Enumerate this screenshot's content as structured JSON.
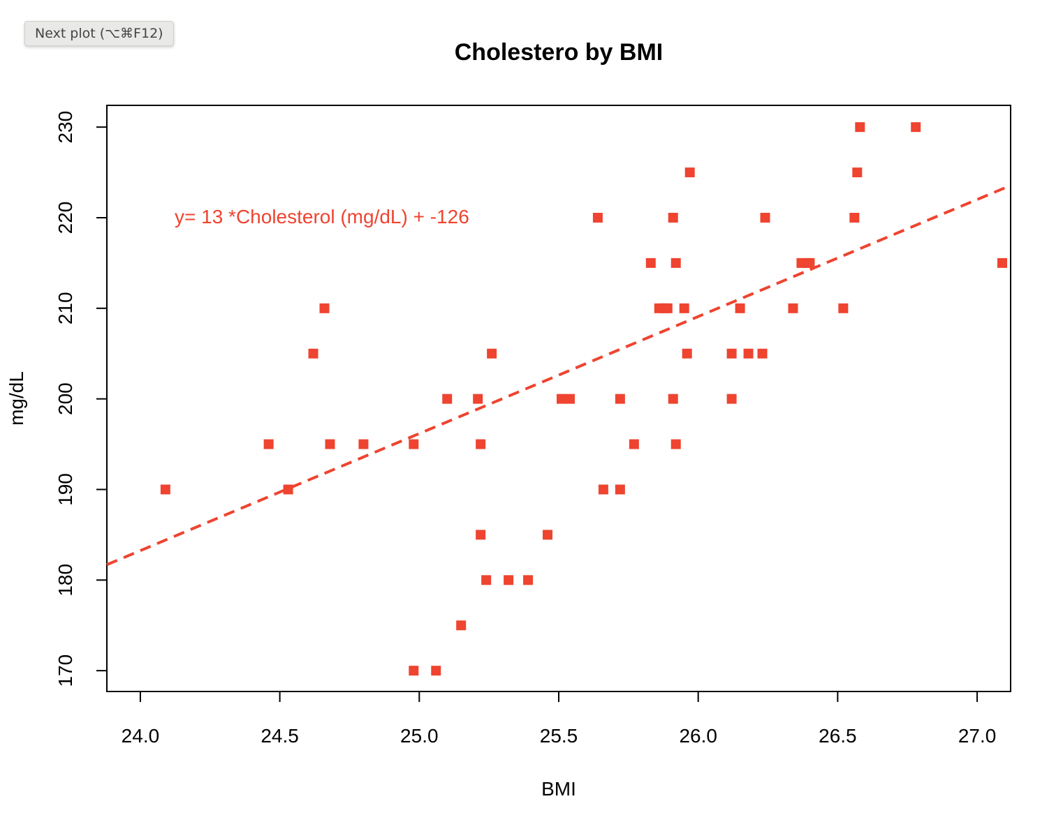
{
  "toolbar": {
    "next_plot_label": "Next plot (⌥⌘F12)"
  },
  "colors": {
    "accent": "#ee4430",
    "axis": "#000000"
  },
  "chart_data": {
    "type": "scatter",
    "title": "Cholestero by BMI",
    "xlabel": "BMI",
    "ylabel": "mg/dL",
    "xlim": [
      23.88,
      27.12
    ],
    "ylim": [
      167.7,
      232.4
    ],
    "xticks": [
      24.0,
      24.5,
      25.0,
      25.5,
      26.0,
      26.5,
      27.0
    ],
    "xtick_labels": [
      "24.0",
      "24.5",
      "25.0",
      "25.5",
      "26.0",
      "26.5",
      "27.0"
    ],
    "yticks": [
      170,
      180,
      190,
      200,
      210,
      220,
      230
    ],
    "ytick_labels": [
      "170",
      "180",
      "190",
      "200",
      "210",
      "220",
      "230"
    ],
    "marker": "square",
    "annotation": "y=  13 *Cholesterol (mg/dL) +  -126",
    "fit_line": {
      "style": "dashed",
      "x": [
        23.88,
        27.1
      ],
      "y": [
        181.7,
        223.3
      ]
    },
    "points": [
      [
        24.09,
        190
      ],
      [
        24.46,
        195
      ],
      [
        24.53,
        190
      ],
      [
        24.62,
        205
      ],
      [
        24.66,
        210
      ],
      [
        24.68,
        195
      ],
      [
        24.8,
        195
      ],
      [
        24.98,
        170
      ],
      [
        24.98,
        195
      ],
      [
        25.06,
        170
      ],
      [
        25.1,
        200
      ],
      [
        25.15,
        175
      ],
      [
        25.21,
        200
      ],
      [
        25.22,
        195
      ],
      [
        25.22,
        185
      ],
      [
        25.24,
        180
      ],
      [
        25.26,
        205
      ],
      [
        25.32,
        180
      ],
      [
        25.39,
        180
      ],
      [
        25.46,
        185
      ],
      [
        25.51,
        200
      ],
      [
        25.54,
        200
      ],
      [
        25.64,
        220
      ],
      [
        25.66,
        190
      ],
      [
        25.72,
        200
      ],
      [
        25.72,
        190
      ],
      [
        25.77,
        195
      ],
      [
        25.83,
        215
      ],
      [
        25.86,
        210
      ],
      [
        25.88,
        210
      ],
      [
        25.89,
        210
      ],
      [
        25.91,
        220
      ],
      [
        25.91,
        200
      ],
      [
        25.92,
        195
      ],
      [
        25.92,
        215
      ],
      [
        25.95,
        210
      ],
      [
        25.96,
        205
      ],
      [
        25.97,
        225
      ],
      [
        26.12,
        205
      ],
      [
        26.12,
        200
      ],
      [
        26.15,
        210
      ],
      [
        26.18,
        205
      ],
      [
        26.23,
        205
      ],
      [
        26.24,
        220
      ],
      [
        26.34,
        210
      ],
      [
        26.37,
        215
      ],
      [
        26.39,
        215
      ],
      [
        26.4,
        215
      ],
      [
        26.52,
        210
      ],
      [
        26.56,
        220
      ],
      [
        26.57,
        225
      ],
      [
        26.58,
        230
      ],
      [
        26.78,
        230
      ],
      [
        27.09,
        215
      ]
    ]
  }
}
